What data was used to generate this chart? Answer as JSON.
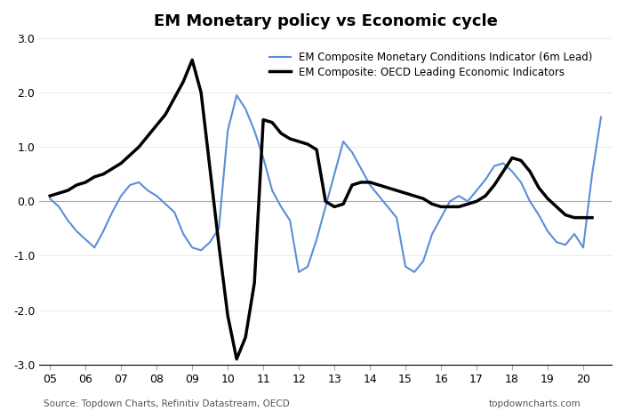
{
  "title": "EM Monetary policy vs Economic cycle",
  "source_left": "Source: Topdown Charts, Refinitiv Datastream, OECD",
  "source_right": "topdowncharts.com",
  "ylim": [
    -3.0,
    3.0
  ],
  "yticks": [
    -3.0,
    -2.0,
    -1.0,
    0.0,
    1.0,
    2.0,
    3.0
  ],
  "xtick_years": [
    "05",
    "06",
    "07",
    "08",
    "09",
    "10",
    "11",
    "12",
    "13",
    "14",
    "15",
    "16",
    "17",
    "18",
    "19",
    "20"
  ],
  "legend_blue": "EM Composite Monetary Conditions Indicator (6m Lead)",
  "legend_black": "EM Composite: OECD Leading Economic Indicators",
  "blue_color": "#5b8dd9",
  "black_color": "#000000",
  "blue_linewidth": 1.5,
  "black_linewidth": 2.5,
  "blue_x": [
    2005.0,
    2005.25,
    2005.5,
    2005.75,
    2006.0,
    2006.25,
    2006.5,
    2006.75,
    2007.0,
    2007.25,
    2007.5,
    2007.75,
    2008.0,
    2008.25,
    2008.5,
    2008.75,
    2009.0,
    2009.25,
    2009.5,
    2009.75,
    2010.0,
    2010.25,
    2010.5,
    2010.75,
    2011.0,
    2011.25,
    2011.5,
    2011.75,
    2012.0,
    2012.25,
    2012.5,
    2012.75,
    2013.0,
    2013.25,
    2013.5,
    2013.75,
    2014.0,
    2014.25,
    2014.5,
    2014.75,
    2015.0,
    2015.25,
    2015.5,
    2015.75,
    2016.0,
    2016.25,
    2016.5,
    2016.75,
    2017.0,
    2017.25,
    2017.5,
    2017.75,
    2018.0,
    2018.25,
    2018.5,
    2018.75,
    2019.0,
    2019.25,
    2019.5,
    2019.75,
    2020.0,
    2020.25,
    2020.5
  ],
  "blue_y": [
    0.05,
    -0.1,
    -0.35,
    -0.55,
    -0.7,
    -0.85,
    -0.55,
    -0.2,
    0.1,
    0.3,
    0.35,
    0.2,
    0.1,
    -0.05,
    -0.2,
    -0.6,
    -0.85,
    -0.9,
    -0.75,
    -0.5,
    1.3,
    1.95,
    1.7,
    1.3,
    0.8,
    0.2,
    -0.1,
    -0.35,
    -1.3,
    -1.2,
    -0.7,
    -0.1,
    0.5,
    1.1,
    0.9,
    0.6,
    0.3,
    0.1,
    -0.1,
    -0.3,
    -1.2,
    -1.3,
    -1.1,
    -0.6,
    -0.3,
    0.0,
    0.1,
    0.0,
    0.2,
    0.4,
    0.65,
    0.7,
    0.55,
    0.35,
    0.0,
    -0.25,
    -0.55,
    -0.75,
    -0.8,
    -0.6,
    -0.85,
    0.5,
    1.55
  ],
  "black_x": [
    2005.0,
    2005.25,
    2005.5,
    2005.75,
    2006.0,
    2006.25,
    2006.5,
    2006.75,
    2007.0,
    2007.25,
    2007.5,
    2007.75,
    2008.0,
    2008.25,
    2008.5,
    2008.75,
    2009.0,
    2009.25,
    2009.5,
    2009.75,
    2010.0,
    2010.25,
    2010.5,
    2010.75,
    2011.0,
    2011.25,
    2011.5,
    2011.75,
    2012.0,
    2012.25,
    2012.5,
    2012.75,
    2013.0,
    2013.25,
    2013.5,
    2013.75,
    2014.0,
    2014.25,
    2014.5,
    2014.75,
    2015.0,
    2015.25,
    2015.5,
    2015.75,
    2016.0,
    2016.25,
    2016.5,
    2016.75,
    2017.0,
    2017.25,
    2017.5,
    2017.75,
    2018.0,
    2018.25,
    2018.5,
    2018.75,
    2019.0,
    2019.25,
    2019.5,
    2019.75,
    2020.0,
    2020.25
  ],
  "black_y": [
    0.1,
    0.15,
    0.2,
    0.3,
    0.35,
    0.45,
    0.5,
    0.6,
    0.7,
    0.85,
    1.0,
    1.2,
    1.4,
    1.6,
    1.9,
    2.2,
    2.6,
    2.0,
    0.6,
    -0.8,
    -2.1,
    -2.9,
    -2.5,
    -1.5,
    1.5,
    1.45,
    1.25,
    1.15,
    1.1,
    1.05,
    0.95,
    0.0,
    -0.1,
    -0.05,
    0.3,
    0.35,
    0.35,
    0.3,
    0.25,
    0.2,
    0.15,
    0.1,
    0.05,
    -0.05,
    -0.1,
    -0.1,
    -0.1,
    -0.05,
    0.0,
    0.1,
    0.3,
    0.55,
    0.8,
    0.75,
    0.55,
    0.25,
    0.05,
    -0.1,
    -0.25,
    -0.3,
    -0.3,
    -0.3
  ]
}
